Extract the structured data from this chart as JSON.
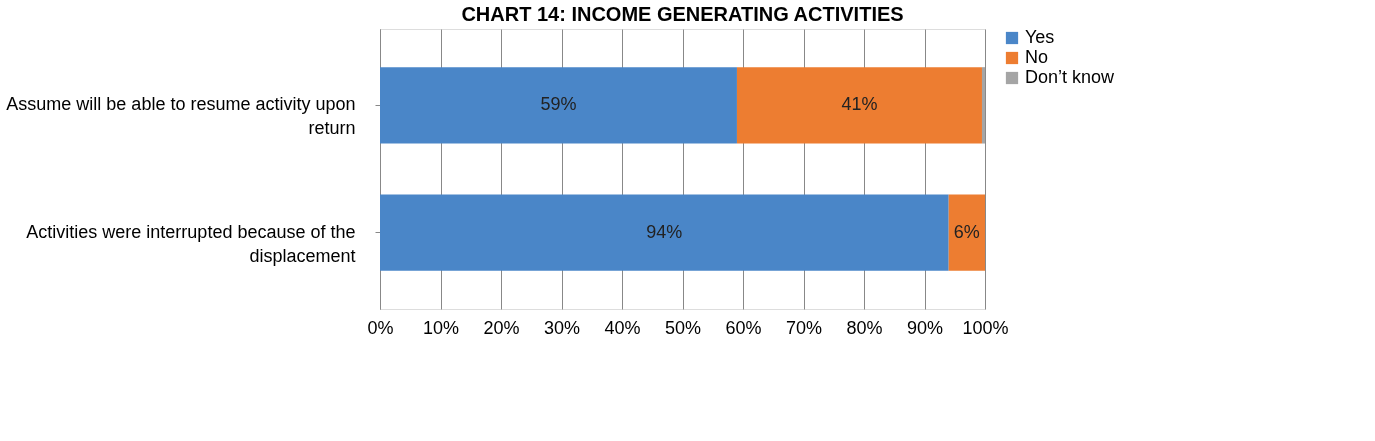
{
  "chart_data": {
    "type": "bar",
    "orientation": "horizontal",
    "stacked": true,
    "title": "CHART 14: INCOME GENERATING ACTIVITIES",
    "categories": [
      "Assume will be able to resume activity upon return",
      "Activities were interrupted because of the displacement"
    ],
    "series": [
      {
        "name": "Yes",
        "color": "#4a86c8",
        "values": [
          59,
          94
        ],
        "value_labels": [
          "59%",
          "94%"
        ]
      },
      {
        "name": "No",
        "color": "#ed7d31",
        "values": [
          40.5,
          6
        ],
        "value_labels": [
          "41%",
          "6%"
        ]
      },
      {
        "name": "Don’t know",
        "color": "#a5a5a5",
        "values": [
          0.5,
          0
        ],
        "value_labels": [
          null,
          null
        ]
      }
    ],
    "xlim": [
      0,
      100
    ],
    "xticks": [
      {
        "value": 0,
        "label": "0%"
      },
      {
        "value": 10,
        "label": "10%"
      },
      {
        "value": 20,
        "label": "20%"
      },
      {
        "value": 30,
        "label": "30%"
      },
      {
        "value": 40,
        "label": "40%"
      },
      {
        "value": 50,
        "label": "50%"
      },
      {
        "value": 60,
        "label": "60%"
      },
      {
        "value": 70,
        "label": "70%"
      },
      {
        "value": 80,
        "label": "80%"
      },
      {
        "value": 90,
        "label": "90%"
      },
      {
        "value": 100,
        "label": "100%"
      }
    ],
    "grid": "x",
    "legend": "right"
  }
}
